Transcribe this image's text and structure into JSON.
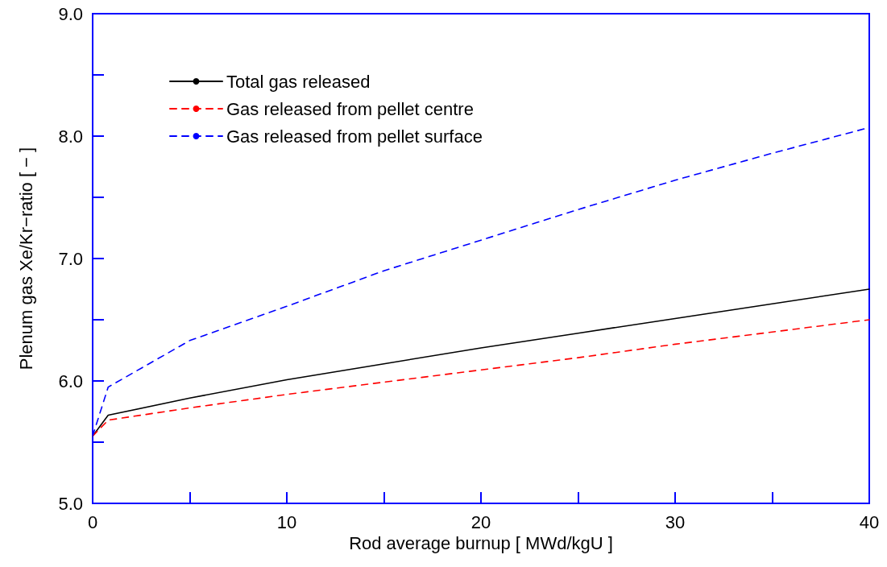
{
  "chart_data": {
    "type": "line",
    "xlabel": "Rod average burnup [ MWd/kgU ]",
    "ylabel": "Plenum gas Xe/Kr−ratio [ − ]",
    "x": [
      0,
      0.8,
      5,
      10,
      15,
      20,
      25,
      30,
      35,
      40
    ],
    "series": [
      {
        "name": "Total gas released",
        "color": "#000000",
        "line_style": "solid",
        "values": [
          5.55,
          5.72,
          5.86,
          6.01,
          6.14,
          6.27,
          6.39,
          6.51,
          6.63,
          6.75
        ]
      },
      {
        "name": "Gas released from pellet centre",
        "color": "#ff0000",
        "line_style": "dashed",
        "values": [
          5.55,
          5.68,
          5.78,
          5.89,
          5.99,
          6.09,
          6.19,
          6.3,
          6.4,
          6.5
        ]
      },
      {
        "name": "Gas released from pellet surface",
        "color": "#0000ff",
        "line_style": "dashed",
        "values": [
          5.55,
          5.95,
          6.33,
          6.61,
          6.9,
          7.15,
          7.4,
          7.64,
          7.86,
          8.07
        ]
      }
    ],
    "xlim": [
      0,
      40
    ],
    "xticks": [
      0,
      {
        "value": 5,
        "label": null
      },
      10,
      {
        "value": 15,
        "label": null
      },
      20,
      {
        "value": 25,
        "label": null
      },
      30,
      {
        "value": 35,
        "label": null
      },
      40
    ],
    "ylim": [
      5,
      9
    ],
    "yticks": [
      {
        "value": 5,
        "label": "5.0"
      },
      {
        "value": 5.5,
        "label": null
      },
      {
        "value": 6,
        "label": "6.0"
      },
      {
        "value": 6.5,
        "label": null
      },
      {
        "value": 7,
        "label": "7.0"
      },
      {
        "value": 7.5,
        "label": null
      },
      {
        "value": 8,
        "label": "8.0"
      },
      {
        "value": 8.5,
        "label": null
      },
      {
        "value": 9,
        "label": "9.0"
      }
    ],
    "grid": false,
    "legend": "top left",
    "marker": "none"
  }
}
